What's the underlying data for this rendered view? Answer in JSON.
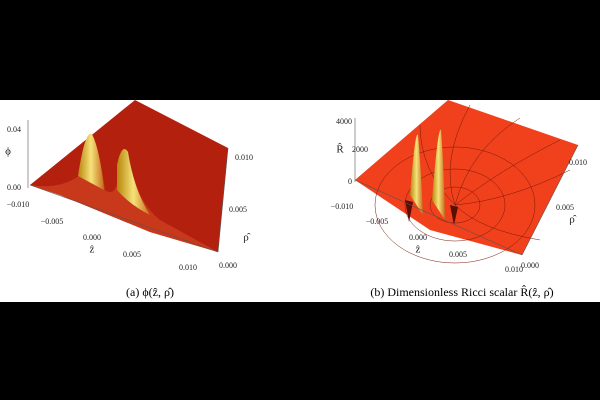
{
  "panels": [
    {
      "caption": "(a) ϕ(ẑ, ρ̂)",
      "z_label": "ϕ",
      "z_ticks": [
        "0.04",
        "0.00"
      ],
      "x_label": "ẑ",
      "x_ticks": [
        "−0.010",
        "−0.005",
        "0.000",
        "0.005",
        "0.010"
      ],
      "y_label": "ρ̂",
      "y_ticks": [
        "0.000",
        "0.005",
        "0.010"
      ]
    },
    {
      "caption": "(b) Dimensionless Ricci scalar R̂(ẑ, ρ̂)",
      "z_label": "R̂",
      "z_ticks": [
        "4000",
        "2000",
        "0"
      ],
      "x_label": "ẑ",
      "x_ticks": [
        "−0.010",
        "−0.005",
        "0.000",
        "0.005",
        "0.010"
      ],
      "y_label": "ρ̂",
      "y_ticks": [
        "0.000",
        "0.005",
        "0.010"
      ]
    }
  ]
}
